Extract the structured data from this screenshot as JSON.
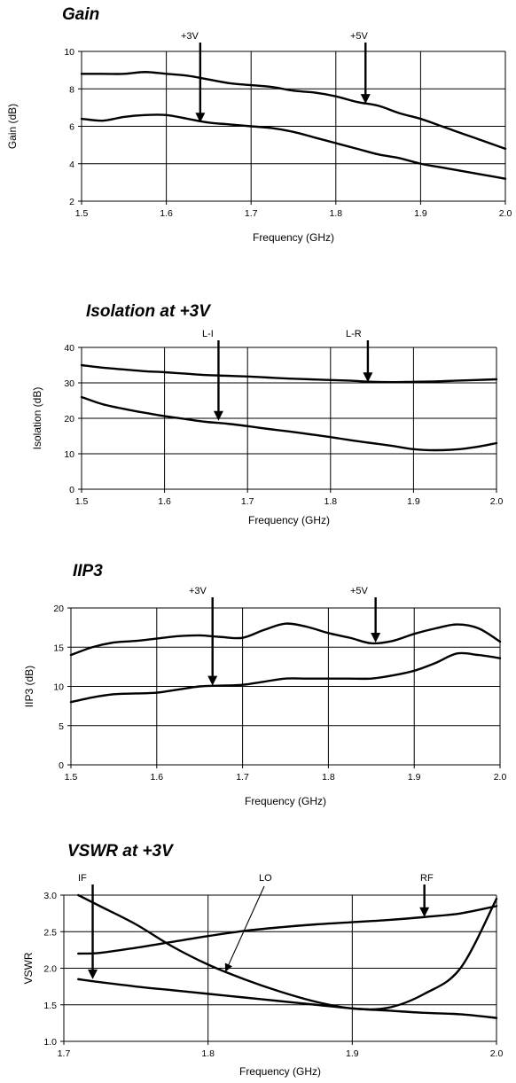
{
  "chart_data": [
    {
      "type": "line",
      "title": "Gain",
      "xlabel": "Frequency (GHz)",
      "ylabel": "Gain (dB)",
      "xlim": [
        1.5,
        2.0
      ],
      "ylim": [
        2,
        10
      ],
      "x_ticks": [
        1.5,
        1.6,
        1.7,
        1.8,
        1.9,
        2.0
      ],
      "x_tick_labels": [
        "1.5",
        "1.6",
        "1.7",
        "1.8",
        "1.9",
        "2.0"
      ],
      "y_ticks": [
        2,
        4,
        6,
        8,
        10
      ],
      "y_tick_labels": [
        "2",
        "4",
        "6",
        "8",
        "10"
      ],
      "grid": "vertical and horizontal",
      "series": [
        {
          "x": [
            1.5,
            1.525,
            1.55,
            1.575,
            1.6,
            1.625,
            1.65,
            1.675,
            1.7,
            1.725,
            1.75,
            1.775,
            1.8,
            1.825,
            1.85,
            1.875,
            1.9,
            1.925,
            1.95,
            1.975,
            2.0
          ],
          "y": [
            8.8,
            8.8,
            8.8,
            8.9,
            8.8,
            8.7,
            8.5,
            8.3,
            8.2,
            8.1,
            7.9,
            7.8,
            7.6,
            7.3,
            7.1,
            6.7,
            6.4,
            6.0,
            5.6,
            5.2,
            4.8
          ]
        },
        {
          "x": [
            1.5,
            1.525,
            1.55,
            1.575,
            1.6,
            1.625,
            1.65,
            1.675,
            1.7,
            1.725,
            1.75,
            1.775,
            1.8,
            1.825,
            1.85,
            1.875,
            1.9,
            1.925,
            1.95,
            1.975,
            2.0
          ],
          "y": [
            6.4,
            6.3,
            6.5,
            6.6,
            6.6,
            6.4,
            6.2,
            6.1,
            6.0,
            5.9,
            5.7,
            5.4,
            5.1,
            4.8,
            4.5,
            4.3,
            4.0,
            3.8,
            3.6,
            3.4,
            3.2
          ]
        }
      ],
      "annotations": [
        {
          "text": "+3V",
          "x": 1.64,
          "y": 6.2
        },
        {
          "text": "+5V",
          "x": 1.835,
          "y": 7.2
        }
      ]
    },
    {
      "type": "line",
      "title": "Isolation at +3V",
      "xlabel": "Frequency (GHz)",
      "ylabel": "Isolation (dB)",
      "xlim": [
        1.5,
        2.0
      ],
      "ylim": [
        0,
        40
      ],
      "x_ticks": [
        1.5,
        1.6,
        1.7,
        1.8,
        1.9,
        2.0
      ],
      "x_tick_labels": [
        "1.5",
        "1.6",
        "1.7",
        "1.8",
        "1.9",
        "2.0"
      ],
      "y_ticks": [
        0,
        10,
        20,
        30,
        40
      ],
      "y_tick_labels": [
        "0",
        "10",
        "20",
        "30",
        "40"
      ],
      "grid": "vertical and horizontal",
      "series": [
        {
          "x": [
            1.5,
            1.525,
            1.55,
            1.575,
            1.6,
            1.625,
            1.65,
            1.675,
            1.7,
            1.725,
            1.75,
            1.775,
            1.8,
            1.825,
            1.85,
            1.875,
            1.9,
            1.925,
            1.95,
            1.975,
            2.0
          ],
          "y": [
            35,
            34.3,
            33.8,
            33.3,
            33.0,
            32.6,
            32.2,
            32.0,
            31.8,
            31.5,
            31.2,
            31.0,
            30.8,
            30.6,
            30.3,
            30.2,
            30.3,
            30.4,
            30.6,
            30.8,
            31.0
          ]
        },
        {
          "x": [
            1.5,
            1.525,
            1.55,
            1.575,
            1.6,
            1.625,
            1.65,
            1.675,
            1.7,
            1.725,
            1.75,
            1.775,
            1.8,
            1.825,
            1.85,
            1.875,
            1.9,
            1.925,
            1.95,
            1.975,
            2.0
          ],
          "y": [
            26,
            24.0,
            22.7,
            21.6,
            20.6,
            19.8,
            19.0,
            18.5,
            17.8,
            17.0,
            16.3,
            15.5,
            14.7,
            13.8,
            13.0,
            12.2,
            11.3,
            11.0,
            11.2,
            11.9,
            13.0
          ]
        }
      ],
      "annotations": [
        {
          "text": "L-I",
          "x": 1.665,
          "y": 19.3
        },
        {
          "text": "L-R",
          "x": 1.845,
          "y": 30.2
        }
      ]
    },
    {
      "type": "line",
      "title": "IIP3",
      "xlabel": "Frequency (GHz)",
      "ylabel": "IIP3 (dB)",
      "xlim": [
        1.5,
        2.0
      ],
      "ylim": [
        0,
        20
      ],
      "x_ticks": [
        1.5,
        1.6,
        1.7,
        1.8,
        1.9,
        2.0
      ],
      "x_tick_labels": [
        "1.5",
        "1.6",
        "1.7",
        "1.8",
        "1.9",
        "2.0"
      ],
      "y_ticks": [
        0,
        5,
        10,
        15,
        20
      ],
      "y_tick_labels": [
        "0",
        "5",
        "10",
        "15",
        "20"
      ],
      "grid": "vertical and horizontal",
      "series": [
        {
          "x": [
            1.5,
            1.525,
            1.55,
            1.575,
            1.6,
            1.625,
            1.65,
            1.675,
            1.7,
            1.725,
            1.75,
            1.775,
            1.8,
            1.825,
            1.85,
            1.875,
            1.9,
            1.925,
            1.95,
            1.975,
            2.0
          ],
          "y": [
            14.0,
            15.0,
            15.6,
            15.8,
            16.1,
            16.4,
            16.5,
            16.3,
            16.2,
            17.2,
            18.0,
            17.6,
            16.8,
            16.2,
            15.5,
            15.8,
            16.7,
            17.4,
            17.9,
            17.4,
            15.7
          ]
        },
        {
          "x": [
            1.5,
            1.525,
            1.55,
            1.575,
            1.6,
            1.625,
            1.65,
            1.675,
            1.7,
            1.725,
            1.75,
            1.775,
            1.8,
            1.825,
            1.85,
            1.875,
            1.9,
            1.925,
            1.95,
            1.975,
            2.0
          ],
          "y": [
            8.0,
            8.6,
            9.0,
            9.1,
            9.2,
            9.6,
            10.0,
            10.1,
            10.2,
            10.6,
            11.0,
            11.0,
            11.0,
            11.0,
            11.0,
            11.4,
            12.0,
            13.0,
            14.2,
            14.0,
            13.6
          ]
        }
      ],
      "annotations": [
        {
          "text": "+3V",
          "x": 1.665,
          "y": 10.1
        },
        {
          "text": "+5V",
          "x": 1.855,
          "y": 15.6
        }
      ]
    },
    {
      "type": "line",
      "title": "VSWR at +3V",
      "xlabel": "Frequency (GHz)",
      "ylabel": "VSWR",
      "xlim": [
        1.7,
        2.0
      ],
      "ylim": [
        1.0,
        3.0
      ],
      "x_ticks": [
        1.7,
        1.8,
        1.9,
        2.0
      ],
      "x_tick_labels": [
        "1.7",
        "1.8",
        "1.9",
        "2.0"
      ],
      "y_ticks": [
        1.0,
        1.5,
        2.0,
        2.5,
        3.0
      ],
      "y_tick_labels": [
        "1.0",
        "1.5",
        "2.0",
        "2.5",
        "3.0"
      ],
      "grid": "vertical and horizontal",
      "series": [
        {
          "x": [
            1.71,
            1.725,
            1.75,
            1.775,
            1.8,
            1.825,
            1.85,
            1.875,
            1.9,
            1.925,
            1.95,
            1.975,
            2.0
          ],
          "y": [
            2.2,
            2.21,
            2.28,
            2.36,
            2.44,
            2.51,
            2.56,
            2.6,
            2.63,
            2.66,
            2.7,
            2.75,
            2.85
          ]
        },
        {
          "x": [
            1.71,
            1.725,
            1.75,
            1.775,
            1.8,
            1.825,
            1.85,
            1.875,
            1.9,
            1.925,
            1.95,
            1.975,
            2.0
          ],
          "y": [
            3.0,
            2.85,
            2.6,
            2.3,
            2.05,
            1.85,
            1.68,
            1.54,
            1.45,
            1.46,
            1.65,
            2.0,
            2.95
          ]
        },
        {
          "x": [
            1.71,
            1.725,
            1.75,
            1.775,
            1.8,
            1.825,
            1.85,
            1.875,
            1.9,
            1.925,
            1.95,
            1.975,
            2.0
          ],
          "y": [
            1.85,
            1.81,
            1.75,
            1.7,
            1.65,
            1.6,
            1.55,
            1.5,
            1.45,
            1.42,
            1.39,
            1.37,
            1.32
          ]
        }
      ],
      "annotations": [
        {
          "text": "IF",
          "x": 1.72,
          "y": 1.85
        },
        {
          "text": "LO",
          "x": 1.812,
          "y": 1.95
        },
        {
          "text": "RF",
          "x": 1.95,
          "y": 2.7
        }
      ]
    }
  ]
}
